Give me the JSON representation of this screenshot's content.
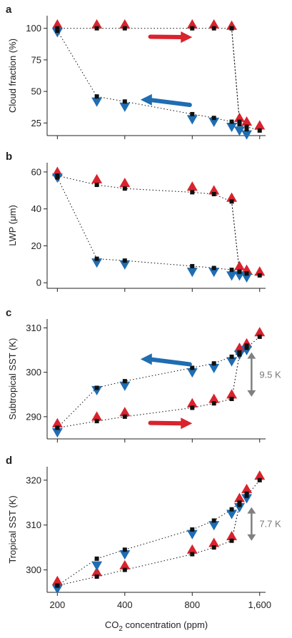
{
  "chart_data": {
    "type": "scatter",
    "x_scale": "log",
    "xticks": [
      200,
      400,
      800,
      1600
    ],
    "xtick_labels": [
      "200",
      "400",
      "800",
      "1,600"
    ],
    "xlabel_main": "CO",
    "xlabel_sub": "2",
    "xlabel_rest": " concentration (ppm)",
    "xlim": [
      180,
      1700
    ],
    "colors": {
      "up": "#d9232d",
      "down": "#1f6db2",
      "control": "#111111",
      "annotation": "#808080"
    },
    "panels": [
      {
        "label": "a",
        "ylabel": "Cloud fraction (%)",
        "ylim": [
          15,
          110
        ],
        "yticks": [
          25,
          50,
          75,
          100
        ],
        "ytick_labels": [
          "25",
          "50",
          "75",
          "100"
        ],
        "upper_branch": {
          "x": [
            200,
            300,
            400,
            800,
            1000,
            1200,
            1300,
            1400,
            1600
          ],
          "triangle_up": [
            103,
            103,
            103,
            103,
            103,
            102,
            29,
            26,
            23
          ],
          "square": [
            100,
            100,
            100,
            100,
            100,
            100,
            26,
            22,
            19
          ]
        },
        "lower_branch": {
          "x": [
            200,
            300,
            400,
            800,
            1000,
            1200,
            1300,
            1400
          ],
          "triangle_down": [
            97,
            42,
            38,
            28,
            26,
            22,
            19,
            16
          ],
          "square": [
            98,
            46,
            42,
            32,
            29,
            26,
            24,
            20
          ]
        },
        "arrows": [
          {
            "direction": "right",
            "color": "red",
            "x_from": 520,
            "x_to": 800,
            "y": 93
          },
          {
            "direction": "left",
            "color": "blue",
            "x_from": 780,
            "x_to": 470,
            "y": 40
          }
        ]
      },
      {
        "label": "b",
        "ylabel": "LWP (μm)",
        "ylim": [
          -3,
          65
        ],
        "yticks": [
          0,
          20,
          40,
          60
        ],
        "ytick_labels": [
          "0",
          "20",
          "40",
          "60"
        ],
        "upper_branch": {
          "x": [
            200,
            300,
            400,
            800,
            1000,
            1200,
            1300,
            1400,
            1600
          ],
          "triangle_up": [
            60,
            56,
            54,
            52,
            50,
            46,
            9,
            7,
            6
          ],
          "square": [
            58,
            53,
            51,
            49,
            48,
            44,
            6,
            5,
            4
          ]
        },
        "lower_branch": {
          "x": [
            200,
            300,
            400,
            800,
            1000,
            1200,
            1300,
            1400
          ],
          "triangle_down": [
            57,
            11,
            10,
            6,
            6,
            4,
            4,
            3
          ],
          "square": [
            57,
            13,
            12,
            9,
            8,
            7,
            6,
            5
          ]
        }
      },
      {
        "label": "c",
        "ylabel": "Subtropical SST (K)",
        "ylim": [
          285,
          312
        ],
        "yticks": [
          290,
          300,
          310
        ],
        "ytick_labels": [
          "290",
          "300",
          "310"
        ],
        "upper_branch": {
          "x": [
            200,
            300,
            400,
            800,
            1000,
            1200,
            1300,
            1400,
            1600
          ],
          "triangle_up": [
            288.5,
            290,
            291,
            293,
            294,
            295,
            305.5,
            306.5,
            309
          ],
          "square": [
            287.5,
            289,
            290,
            292,
            293,
            294,
            304,
            305.5,
            308
          ]
        },
        "lower_branch": {
          "x": [
            200,
            300,
            400,
            800,
            1000,
            1200,
            1300,
            1400
          ],
          "triangle_down": [
            286.5,
            296,
            297,
            300,
            301,
            302.5,
            304,
            305
          ],
          "square": [
            287.5,
            296.5,
            298,
            301,
            302,
            303.5,
            304.5,
            306
          ]
        },
        "arrows": [
          {
            "direction": "left",
            "color": "blue",
            "x_from": 780,
            "x_to": 470,
            "y": 302
          },
          {
            "direction": "right",
            "color": "red",
            "x_from": 520,
            "x_to": 800,
            "y": 288.5
          }
        ],
        "annotation": {
          "text": "9.5 K",
          "x": 1450,
          "y_from": 294.5,
          "y_to": 304.5
        }
      },
      {
        "label": "d",
        "ylabel": "Tropical SST (K)",
        "ylim": [
          295,
          323
        ],
        "yticks": [
          300,
          310,
          320
        ],
        "ytick_labels": [
          "300",
          "310",
          "320"
        ],
        "upper_branch": {
          "x": [
            200,
            300,
            400,
            800,
            1000,
            1200,
            1300,
            1400,
            1600
          ],
          "triangle_up": [
            297.5,
            299.5,
            301,
            304.5,
            306,
            307.5,
            316,
            318,
            321
          ],
          "square": [
            296.5,
            298.5,
            300,
            303.5,
            305,
            306.5,
            314.5,
            316.5,
            320
          ]
        },
        "lower_branch": {
          "x": [
            200,
            300,
            400,
            800,
            1000,
            1200,
            1300,
            1400
          ],
          "triangle_down": [
            295.8,
            301,
            303.5,
            308,
            310,
            312.5,
            314,
            316
          ],
          "square": [
            296.5,
            302.5,
            304.5,
            309,
            311,
            313.5,
            315,
            317
          ]
        },
        "annotation": {
          "text": "7.7 K",
          "x": 1450,
          "y_from": 306.5,
          "y_to": 314
        }
      }
    ]
  }
}
